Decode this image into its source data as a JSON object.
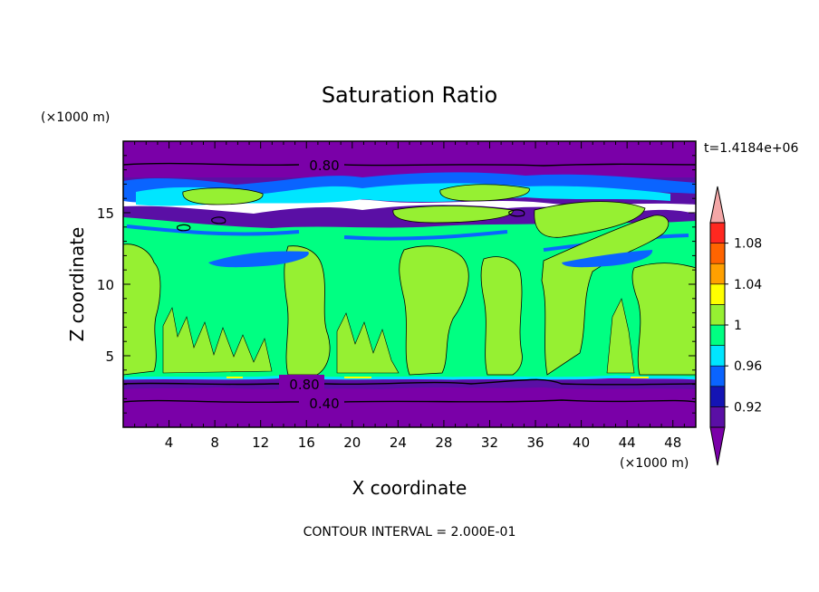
{
  "chart_data": {
    "type": "heatmap",
    "title": "Saturation Ratio",
    "xlabel": "X coordinate",
    "ylabel": "Z coordinate",
    "x_unit": "(×1000 m)",
    "y_unit": "(×1000 m)",
    "time_label": "t=1.4184e+06",
    "footer": "CONTOUR INTERVAL = 2.000E-01",
    "xlim": [
      0,
      50
    ],
    "ylim": [
      0,
      20
    ],
    "x_ticks": [
      "4",
      "8",
      "12",
      "16",
      "20",
      "24",
      "28",
      "32",
      "36",
      "40",
      "44",
      "48"
    ],
    "y_ticks": [
      "5",
      "10",
      "15"
    ],
    "contour_labels": [
      {
        "text": "0.80",
        "x": 17.0,
        "z": 18.4
      },
      {
        "text": "0.80",
        "x": 15.6,
        "z": 3.0
      },
      {
        "text": "0.40",
        "x": 17.0,
        "z": 1.8
      }
    ],
    "colorbar": {
      "levels": [
        0.9,
        0.92,
        0.94,
        0.96,
        0.98,
        1.0,
        1.02,
        1.04,
        1.06,
        1.08,
        1.1
      ],
      "colors": [
        "#5a0fa5",
        "#1414b4",
        "#0a64ff",
        "#00e6ff",
        "#00ff82",
        "#96f032",
        "#ffff00",
        "#ffa000",
        "#ff6400",
        "#ff2820"
      ],
      "under_color": "#7a00a8",
      "over_color": "#f4a7a7",
      "tick_labels": [
        "0.92",
        "0.96",
        "1",
        "1.04",
        "1.08"
      ]
    },
    "regions": {
      "surface_layer": {
        "z": [
          0,
          3.4
        ],
        "value": 0.6
      },
      "mid_layer": {
        "z": [
          3.4,
          13.2
        ],
        "value": 0.99
      },
      "upper_mixed": {
        "z": [
          13.2,
          17.5
        ],
        "value": 0.96
      },
      "top_layer": {
        "z": [
          17.5,
          20
        ],
        "value": 0.85
      },
      "columns": [
        {
          "x": [
            0,
            3.5
          ],
          "z": [
            4,
            12.5
          ]
        },
        {
          "x": [
            14,
            18
          ],
          "z": [
            4,
            12.8
          ]
        },
        {
          "x": [
            25,
            29.5
          ],
          "z": [
            4,
            12.8
          ]
        },
        {
          "x": [
            31.5,
            35.5
          ],
          "z": [
            4,
            12.3
          ]
        },
        {
          "x": [
            39.5,
            44
          ],
          "z": [
            4,
            12.0
          ]
        },
        {
          "x": [
            46,
            50
          ],
          "z": [
            4,
            11.0
          ]
        }
      ]
    }
  }
}
